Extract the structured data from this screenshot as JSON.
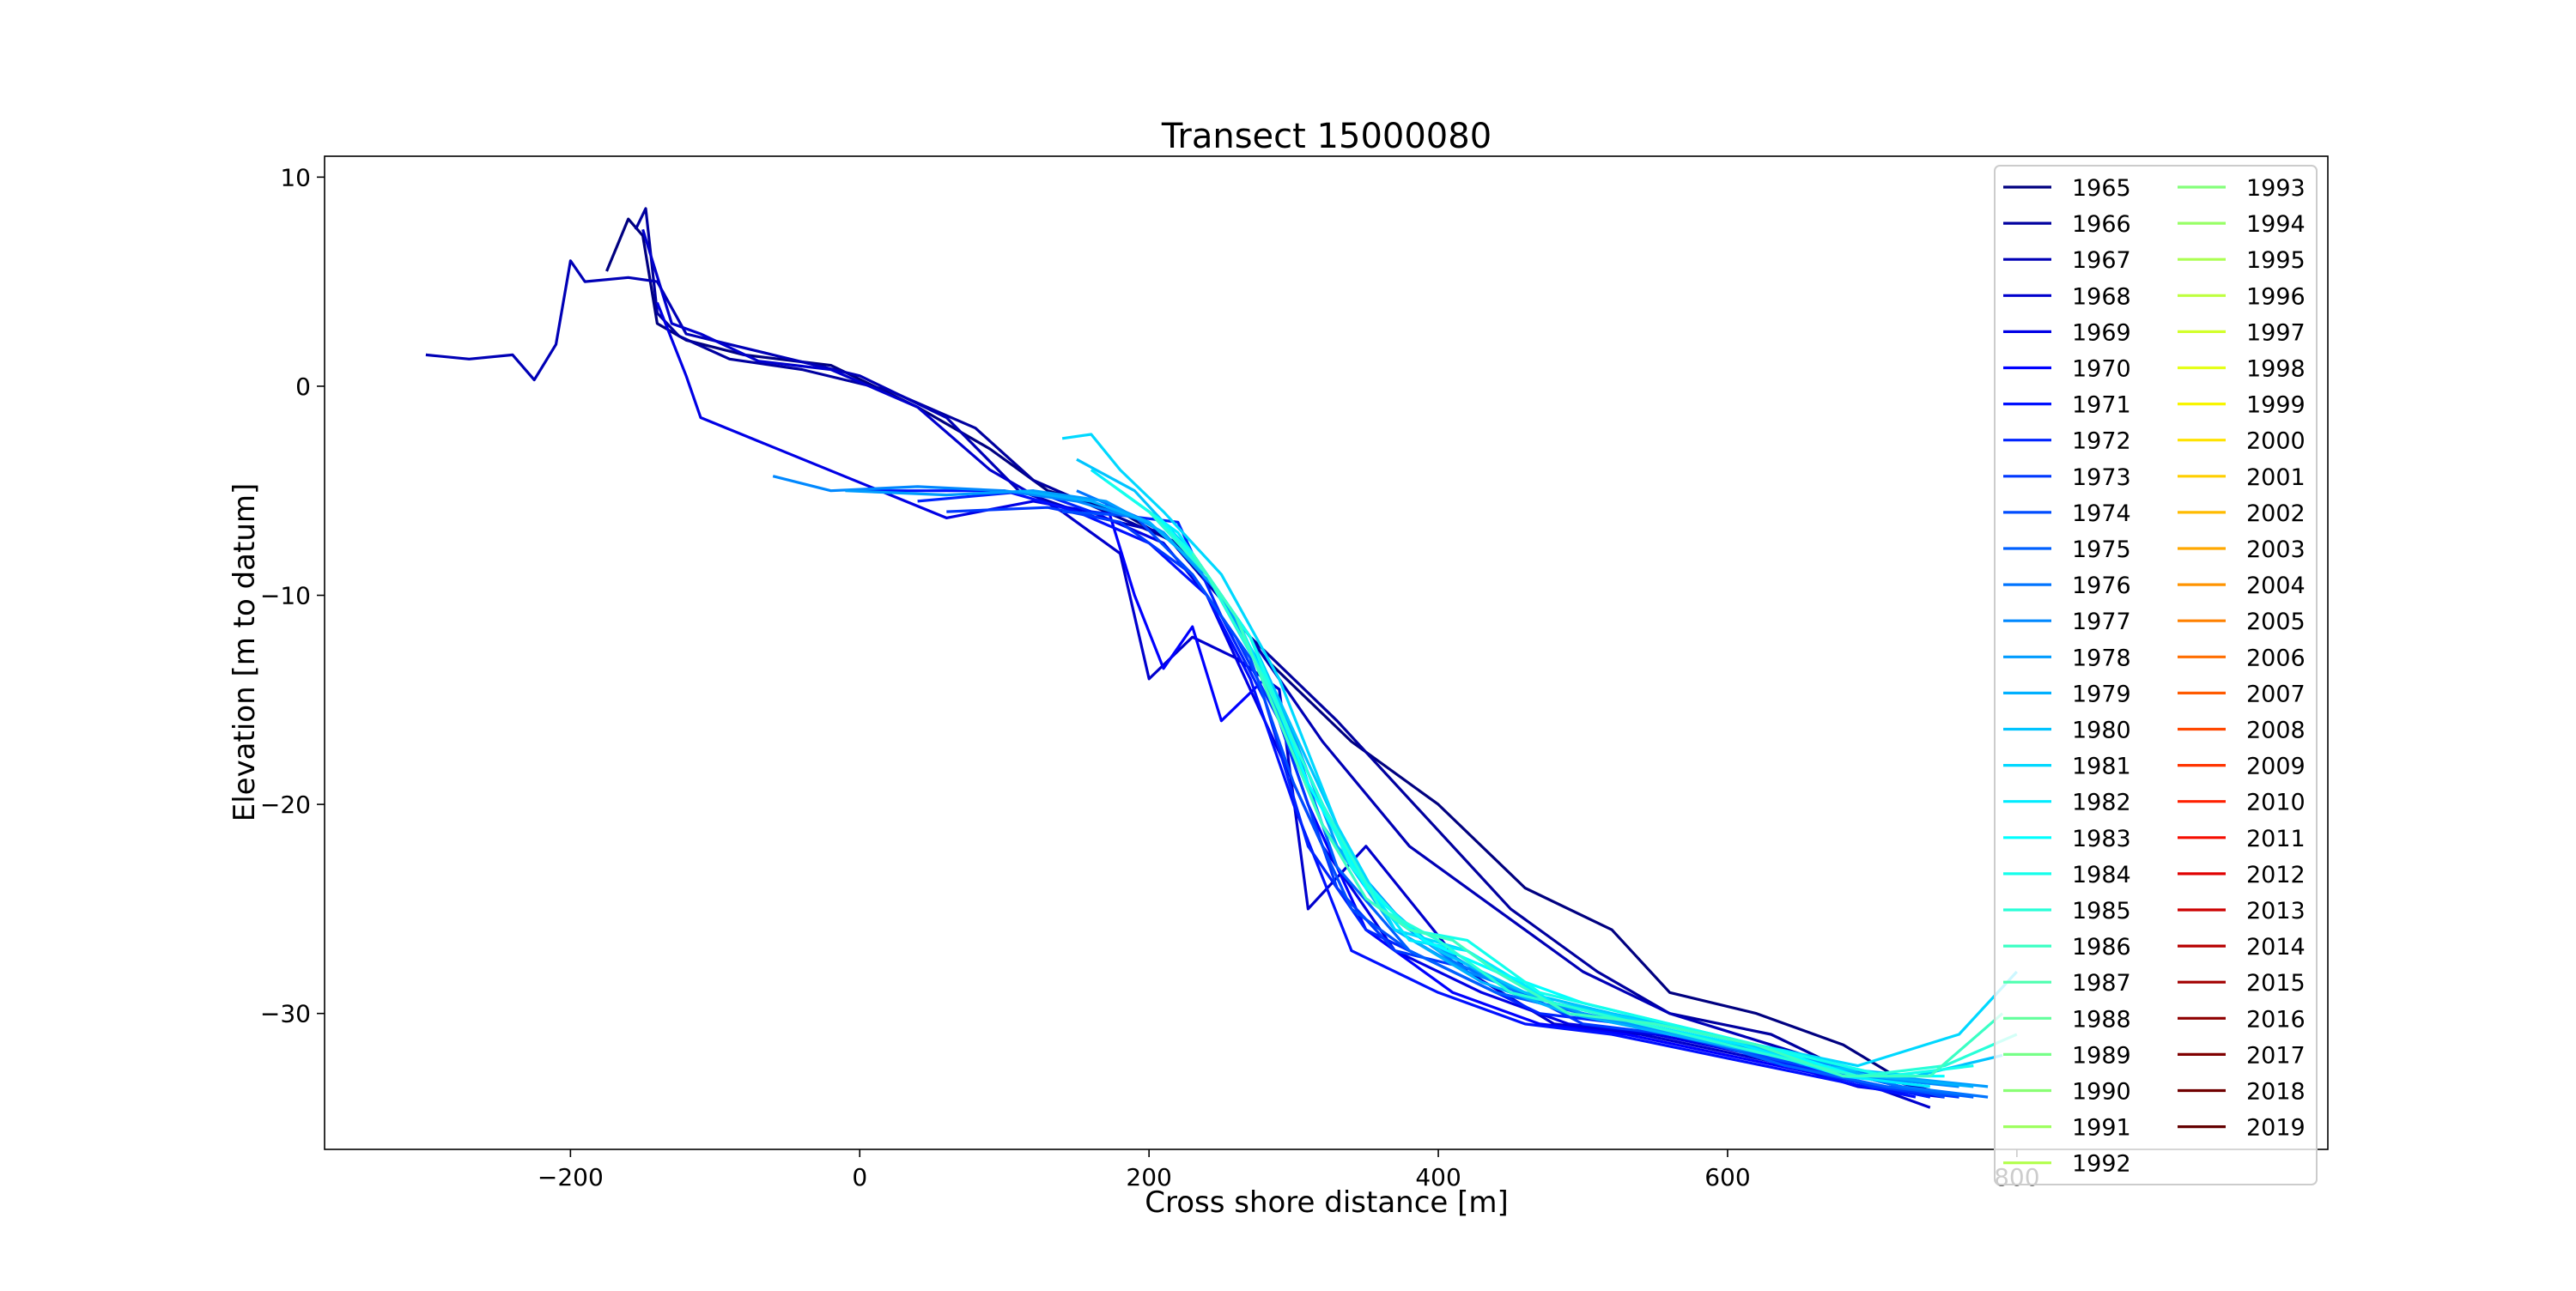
{
  "chart_data": {
    "type": "line",
    "title": "Transect 15000080",
    "xlabel": "Cross shore distance [m]",
    "ylabel": "Elevation [m to datum]",
    "xlim": [
      -370,
      1015
    ],
    "ylim": [
      -36.5,
      11
    ],
    "xticks": [
      -200,
      0,
      200,
      400,
      600,
      800
    ],
    "xtick_labels": [
      "−200",
      "0",
      "200",
      "400",
      "600",
      "800"
    ],
    "yticks": [
      10,
      0,
      -10,
      -20,
      -30
    ],
    "ytick_labels": [
      "10",
      "0",
      "−10",
      "−20",
      "−30"
    ],
    "grid": false,
    "legend": {
      "placement": "upper-right",
      "columns": 2
    },
    "series": [
      {
        "name": "1965",
        "color": "#000080",
        "x": [
          -175,
          -160,
          -150,
          -140,
          -120,
          -80,
          -20,
          40,
          90,
          130,
          180,
          230,
          280,
          340,
          400,
          460,
          520,
          560,
          620,
          680,
          740
        ],
        "y": [
          5.5,
          8,
          7.2,
          3,
          2.2,
          1.5,
          1,
          -1,
          -3,
          -5,
          -6,
          -8,
          -13,
          -17,
          -20,
          -24,
          -26,
          -29,
          -30,
          -31.5,
          -34
        ]
      },
      {
        "name": "1966",
        "color": "#00009f",
        "x": [
          -155,
          -148,
          -140,
          -125,
          -90,
          -40,
          20,
          80,
          120,
          170,
          220,
          270,
          330,
          390,
          450,
          510,
          560,
          630,
          690,
          750
        ],
        "y": [
          7.5,
          8.5,
          3.5,
          2.4,
          1.3,
          0.8,
          -0.2,
          -2,
          -4.5,
          -6,
          -7.5,
          -12,
          -16,
          -20.5,
          -25,
          -28,
          -30,
          -31,
          -33,
          -34
        ]
      },
      {
        "name": "1967",
        "color": "#0000b6",
        "x": [
          -300,
          -270,
          -240,
          -225,
          -210,
          -200,
          -190,
          -160,
          -140,
          -120,
          -60,
          0,
          60,
          110,
          160,
          210,
          260,
          320,
          380,
          440,
          500,
          560,
          630,
          700,
          760
        ],
        "y": [
          1.5,
          1.3,
          1.5,
          0.3,
          2,
          6,
          5,
          5.2,
          5,
          2.5,
          1.5,
          0.5,
          -1.5,
          -5,
          -6.2,
          -7,
          -11,
          -17,
          -22,
          -25,
          -28,
          -30,
          -31.5,
          -33,
          -34
        ]
      },
      {
        "name": "1968",
        "color": "#0000cd",
        "x": [
          -150,
          -130,
          -110,
          -70,
          -20,
          40,
          90,
          140,
          180,
          200,
          230,
          260,
          290,
          310,
          350,
          420,
          480,
          540,
          610,
          680,
          740
        ],
        "y": [
          7.5,
          3,
          2.5,
          1.2,
          0.8,
          -1,
          -4,
          -6,
          -8,
          -14,
          -12,
          -13,
          -14.5,
          -25,
          -22,
          -28,
          -30.5,
          -31,
          -32,
          -33,
          -34.5
        ]
      },
      {
        "name": "1969",
        "color": "#0000e5",
        "x": [
          -140,
          -120,
          -110,
          60,
          120,
          160,
          210,
          240,
          280,
          320,
          370,
          430,
          490,
          550,
          620,
          690,
          750
        ],
        "y": [
          4,
          0.5,
          -1.5,
          -6.3,
          -5.5,
          -6,
          -7.5,
          -10,
          -16,
          -22,
          -27,
          -29,
          -30.5,
          -31,
          -32,
          -33.5,
          -34
        ]
      },
      {
        "name": "1970",
        "color": "#0000ff",
        "x": [
          170,
          190,
          210,
          230,
          250,
          280,
          310,
          350,
          410,
          470,
          530,
          600,
          670,
          740
        ],
        "y": [
          -5.5,
          -10,
          -13.5,
          -11.5,
          -16,
          -14,
          -20,
          -26,
          -29,
          -30.5,
          -31,
          -32,
          -33,
          -34
        ]
      },
      {
        "name": "1971",
        "color": "#0010ff",
        "x": [
          0,
          100,
          150,
          200,
          240,
          270,
          300,
          340,
          400,
          460,
          520,
          590,
          660,
          730
        ],
        "y": [
          -5,
          -5,
          -6,
          -7.5,
          -10,
          -14,
          -20,
          -27,
          -29,
          -30.5,
          -31,
          -32,
          -33,
          -34
        ]
      },
      {
        "name": "1972",
        "color": "#0024ff",
        "x": [
          40,
          120,
          160,
          220,
          250,
          280,
          310,
          350,
          410,
          470,
          530,
          600,
          670,
          740
        ],
        "y": [
          -5.5,
          -5,
          -6,
          -6.5,
          -11,
          -15,
          -22,
          -26,
          -28,
          -30,
          -30.5,
          -31.5,
          -33,
          -34
        ]
      },
      {
        "name": "1973",
        "color": "#0038ff",
        "x": [
          60,
          130,
          180,
          230,
          260,
          290,
          330,
          370,
          430,
          500,
          560,
          630,
          700,
          760
        ],
        "y": [
          -6,
          -5.8,
          -6.5,
          -9,
          -12,
          -16,
          -24,
          -27,
          -28,
          -30.5,
          -31,
          -32,
          -33.5,
          -34
        ]
      },
      {
        "name": "1974",
        "color": "#004cff",
        "x": [
          140,
          190,
          230,
          270,
          300,
          340,
          380,
          440,
          500,
          560,
          620,
          690,
          750
        ],
        "y": [
          -6,
          -6.2,
          -9,
          -13,
          -19,
          -25,
          -27,
          -29,
          -30,
          -31,
          -32,
          -33,
          -34
        ]
      },
      {
        "name": "1975",
        "color": "#0060ff",
        "x": [
          170,
          210,
          250,
          290,
          330,
          380,
          440,
          500,
          570,
          640,
          710,
          770
        ],
        "y": [
          -5.5,
          -7,
          -10,
          -15,
          -23,
          -27,
          -29,
          -30,
          -31,
          -32.5,
          -33.5,
          -34
        ]
      },
      {
        "name": "1976",
        "color": "#0074ff",
        "x": [
          150,
          200,
          240,
          280,
          320,
          360,
          410,
          470,
          530,
          600,
          660,
          720,
          780
        ],
        "y": [
          -5,
          -6.5,
          -9,
          -14,
          -20,
          -25,
          -27.5,
          -29.5,
          -30.5,
          -31.5,
          -32.5,
          -33.5,
          -34
        ]
      },
      {
        "name": "1977",
        "color": "#0088ff",
        "x": [
          -60,
          -20,
          40,
          100,
          150,
          200,
          240,
          280,
          320,
          370,
          420,
          480,
          550,
          620,
          690,
          760
        ],
        "y": [
          -4.3,
          -5,
          -4.8,
          -5,
          -5.5,
          -6.5,
          -9,
          -14,
          -21,
          -26,
          -28,
          -29.5,
          -30.5,
          -31.5,
          -33,
          -33.5
        ]
      },
      {
        "name": "1978",
        "color": "#009cff",
        "x": [
          -10,
          60,
          120,
          170,
          210,
          250,
          290,
          330,
          380,
          440,
          500,
          570,
          640,
          710,
          780
        ],
        "y": [
          -5,
          -5.2,
          -5,
          -5.5,
          -7,
          -10,
          -15,
          -22,
          -26,
          -28.5,
          -30,
          -31,
          -32,
          -33,
          -33.5
        ]
      },
      {
        "name": "1979",
        "color": "#00b0ff",
        "x": [
          110,
          160,
          200,
          240,
          280,
          320,
          370,
          430,
          490,
          560,
          630,
          700,
          770
        ],
        "y": [
          -5,
          -5.5,
          -6.5,
          -9,
          -14,
          -21,
          -26,
          -28.5,
          -30,
          -31,
          -32,
          -33,
          -33.5
        ]
      },
      {
        "name": "1980",
        "color": "#00c4ff",
        "x": [
          150,
          190,
          230,
          270,
          310,
          350,
          400,
          460,
          520,
          590,
          660,
          730,
          790
        ],
        "y": [
          -3.5,
          -5,
          -8,
          -12,
          -18,
          -24,
          -27,
          -29,
          -30,
          -31,
          -32.5,
          -33,
          -32
        ]
      },
      {
        "name": "1981",
        "color": "#00d8ff",
        "x": [
          140,
          160,
          180,
          210,
          250,
          290,
          330,
          370,
          420,
          480,
          550,
          620,
          690,
          760,
          800
        ],
        "y": [
          -2.5,
          -2.3,
          -4,
          -6,
          -9,
          -14,
          -21,
          -26,
          -27,
          -29.5,
          -30.5,
          -31.5,
          -32.5,
          -31,
          -28
        ]
      },
      {
        "name": "1982",
        "color": "#00ecff",
        "x": [
          160,
          190,
          220,
          260,
          300,
          340,
          380,
          420,
          480,
          540,
          610,
          680,
          740
        ],
        "y": [
          -4,
          -5.5,
          -7,
          -11,
          -17,
          -23,
          -26.5,
          -27,
          -29.5,
          -30.5,
          -31.5,
          -33,
          -33.5
        ]
      },
      {
        "name": "1983",
        "color": "#00ffff",
        "x": [
          180,
          210,
          240,
          270,
          310,
          350,
          390,
          440,
          500,
          560,
          620,
          690,
          750
        ],
        "y": [
          -5,
          -6.5,
          -9,
          -12,
          -19,
          -24,
          -26.5,
          -28,
          -29.5,
          -30.5,
          -31.5,
          -33,
          -33
        ]
      },
      {
        "name": "1984",
        "color": "#13ffec",
        "x": [
          170,
          200,
          230,
          270,
          300,
          340,
          380,
          420,
          470,
          530,
          590,
          650,
          710,
          770
        ],
        "y": [
          -4.5,
          -6,
          -8,
          -12,
          -17,
          -23,
          -26,
          -26.5,
          -29,
          -30,
          -31,
          -32,
          -33,
          -32.5
        ]
      },
      {
        "name": "1985",
        "color": "#27ffd8",
        "x": [
          200,
          240,
          280,
          320,
          360,
          400,
          450,
          510,
          570,
          630,
          690,
          750,
          800
        ],
        "y": [
          -6,
          -9,
          -14,
          -20,
          -25,
          -26.5,
          -29,
          -30,
          -31,
          -32,
          -33,
          -32.5,
          -31
        ]
      },
      {
        "name": "1986",
        "color": "#3bffc4",
        "x": [
          230,
          260,
          290,
          320,
          350,
          380,
          410,
          440,
          490,
          550,
          620,
          680,
          740,
          790
        ],
        "y": [
          -8,
          -11,
          -16,
          -21,
          -24.5,
          -26,
          -26.5,
          -28,
          -30,
          -30.5,
          -31.5,
          -33,
          -33,
          -30
        ]
      }
    ]
  },
  "legend_entries_col1": [
    "1965",
    "1966",
    "1967",
    "1968",
    "1969",
    "1970",
    "1971",
    "1972",
    "1973",
    "1974",
    "1975",
    "1976",
    "1977",
    "1978",
    "1979",
    "1980",
    "1981",
    "1982",
    "1983",
    "1984",
    "1985",
    "1986",
    "1987",
    "1988",
    "1989",
    "1990",
    "1991",
    "1992"
  ],
  "legend_colors_col1": [
    "#000080",
    "#00009f",
    "#0000b6",
    "#0000cd",
    "#0000e5",
    "#0000ff",
    "#0010ff",
    "#0024ff",
    "#0038ff",
    "#004cff",
    "#0060ff",
    "#0074ff",
    "#0088ff",
    "#009cff",
    "#00b0ff",
    "#00c4ff",
    "#00d8ff",
    "#00ecff",
    "#00ffff",
    "#13ffec",
    "#27ffd8",
    "#3bffc4",
    "#4fffb0",
    "#62ff9c",
    "#76ff88",
    "#8aff74",
    "#9eff60",
    "#b2ff4c"
  ],
  "legend_entries_col2": [
    "1993",
    "1994",
    "1995",
    "1996",
    "1997",
    "1998",
    "1999",
    "2000",
    "2001",
    "2002",
    "2003",
    "2004",
    "2005",
    "2006",
    "2007",
    "2008",
    "2009",
    "2010",
    "2011",
    "2012",
    "2013",
    "2014",
    "2015",
    "2016",
    "2017",
    "2018",
    "2019"
  ],
  "legend_colors_col2": [
    "#84ff7a",
    "#97ff66",
    "#abff52",
    "#beff3f",
    "#d2ff2b",
    "#e5ff18",
    "#f8f500",
    "#ffe200",
    "#ffcf00",
    "#ffbb00",
    "#ffa800",
    "#ff9400",
    "#ff8100",
    "#ff6e00",
    "#ff5a00",
    "#ff4700",
    "#ff3400",
    "#ff2000",
    "#f50d00",
    "#e00000",
    "#cc0000",
    "#b70000",
    "#a30000",
    "#8e0000",
    "#800000",
    "#700000",
    "#640000"
  ]
}
